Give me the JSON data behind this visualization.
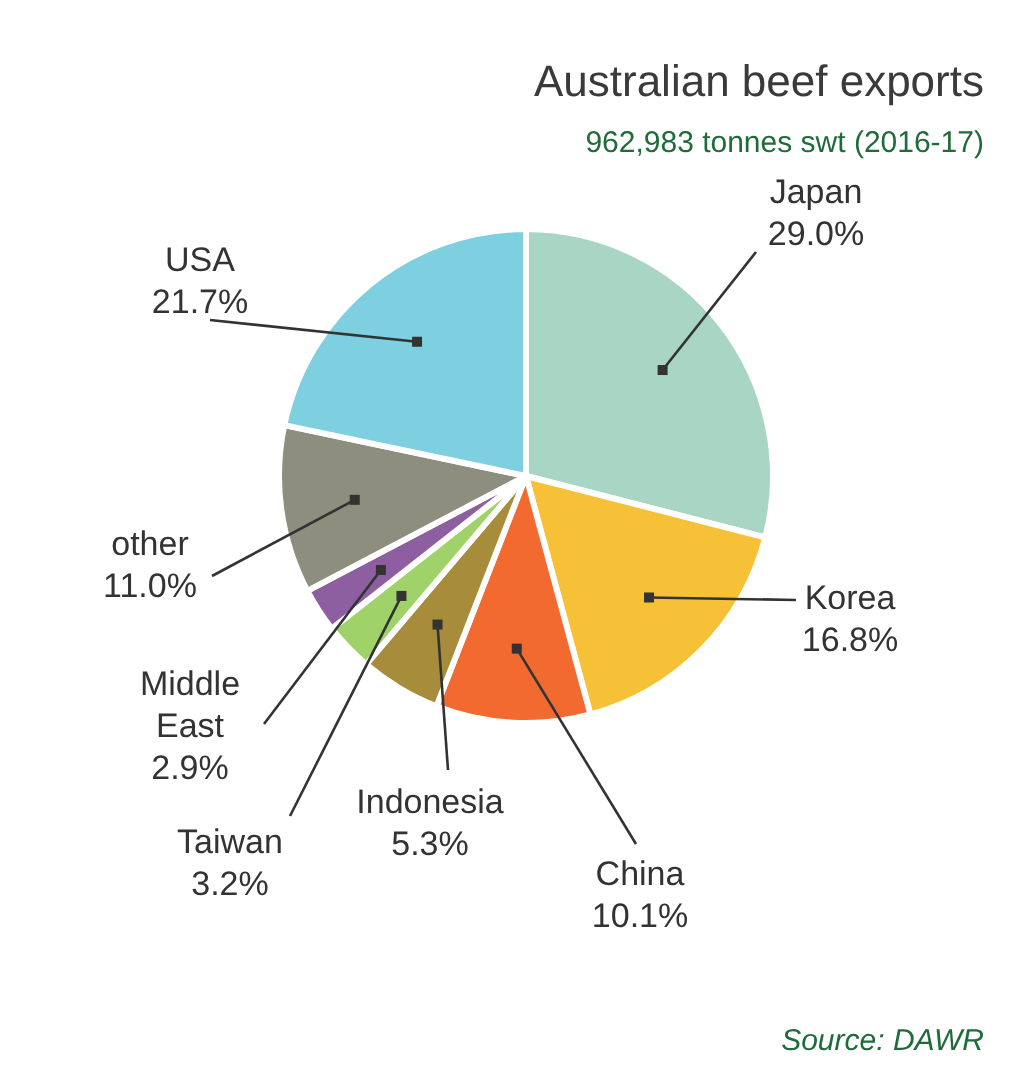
{
  "chart_data": {
    "type": "pie",
    "title": "Australian beef exports",
    "subtitle": "962,983 tonnes swt (2016-17)",
    "annotations": [
      "Source: DAWR"
    ],
    "categories": [
      "Japan",
      "Korea",
      "China",
      "Indonesia",
      "Taiwan",
      "Middle East",
      "other",
      "USA"
    ],
    "values": [
      29.0,
      16.8,
      10.1,
      5.3,
      3.2,
      2.9,
      11.0,
      21.7
    ],
    "value_labels": [
      "29.0%",
      "16.8%",
      "10.1%",
      "5.3%",
      "3.2%",
      "2.9%",
      "11.0%",
      "21.7%"
    ],
    "colors": [
      "#a8d5c4",
      "#f6c137",
      "#f26a30",
      "#a78d3b",
      "#9fd36a",
      "#8e5fa0",
      "#8e8e7e",
      "#7ecfe0"
    ],
    "legend": false
  }
}
